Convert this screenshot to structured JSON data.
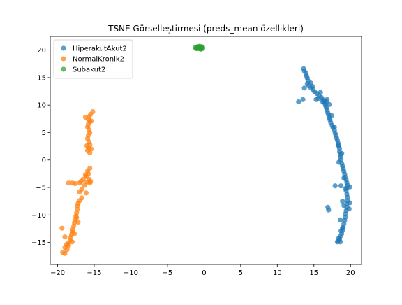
{
  "chart_data": {
    "type": "scatter",
    "title": "TSNE Görselleştirmesi (preds_mean özellikleri)",
    "xlabel": "",
    "ylabel": "",
    "xlim": [
      -21,
      21.5
    ],
    "ylim": [
      -19,
      22.5
    ],
    "xticks": [
      -20,
      -15,
      -10,
      -5,
      0,
      5,
      10,
      15,
      20
    ],
    "yticks": [
      -15,
      -10,
      -5,
      0,
      5,
      10,
      15,
      20
    ],
    "grid": false,
    "legend_position": "top-left",
    "series": [
      {
        "name": "HiperakutAkut2",
        "color": "#1f77b4",
        "points": [
          [
            13.6,
            16.6
          ],
          [
            13.7,
            16.2
          ],
          [
            13.9,
            15.8
          ],
          [
            14.0,
            15.3
          ],
          [
            14.1,
            14.9
          ],
          [
            14.2,
            14.4
          ],
          [
            14.1,
            13.9
          ],
          [
            14.3,
            13.5
          ],
          [
            14.6,
            13.1
          ],
          [
            14.9,
            12.8
          ],
          [
            15.1,
            12.4
          ],
          [
            15.4,
            12.1
          ],
          [
            15.7,
            11.7
          ],
          [
            16.0,
            11.4
          ],
          [
            16.2,
            11.0
          ],
          [
            16.4,
            10.7
          ],
          [
            16.5,
            10.3
          ],
          [
            16.6,
            9.9
          ],
          [
            16.7,
            9.5
          ],
          [
            16.8,
            9.1
          ],
          [
            16.9,
            8.6
          ],
          [
            17.0,
            8.2
          ],
          [
            17.1,
            7.7
          ],
          [
            17.2,
            7.3
          ],
          [
            17.3,
            6.8
          ],
          [
            17.5,
            6.3
          ],
          [
            17.6,
            5.9
          ],
          [
            17.8,
            5.4
          ],
          [
            17.9,
            4.9
          ],
          [
            18.0,
            4.5
          ],
          [
            18.1,
            4.0
          ],
          [
            18.2,
            3.6
          ],
          [
            18.3,
            3.1
          ],
          [
            18.4,
            2.6
          ],
          [
            18.5,
            2.1
          ],
          [
            18.5,
            1.5
          ],
          [
            18.6,
            1.0
          ],
          [
            18.6,
            0.5
          ],
          [
            18.7,
            0.0
          ],
          [
            18.8,
            -0.6
          ],
          [
            18.9,
            -1.1
          ],
          [
            19.0,
            -1.6
          ],
          [
            19.1,
            -2.1
          ],
          [
            19.2,
            -2.6
          ],
          [
            19.3,
            -3.1
          ],
          [
            19.4,
            -3.6
          ],
          [
            19.5,
            -4.1
          ],
          [
            19.6,
            -4.6
          ],
          [
            19.5,
            -5.1
          ],
          [
            19.4,
            -5.6
          ],
          [
            19.5,
            -6.2
          ],
          [
            19.6,
            -6.8
          ],
          [
            19.6,
            -7.4
          ],
          [
            19.5,
            -8.0
          ],
          [
            19.5,
            -8.6
          ],
          [
            19.4,
            -9.2
          ],
          [
            19.3,
            -9.8
          ],
          [
            19.3,
            -10.4
          ],
          [
            19.2,
            -11.0
          ],
          [
            19.1,
            -11.6
          ],
          [
            19.0,
            -12.2
          ],
          [
            18.9,
            -12.8
          ],
          [
            18.8,
            -13.4
          ],
          [
            18.6,
            -13.9
          ],
          [
            18.5,
            -14.4
          ],
          [
            18.3,
            -14.7
          ],
          [
            18.6,
            -14.9
          ],
          [
            18.4,
            -14.2
          ],
          [
            18.9,
            -12.4
          ],
          [
            19.1,
            -8.3
          ],
          [
            19.8,
            -8.9
          ],
          [
            19.9,
            -7.8
          ],
          [
            18.9,
            -7.5
          ],
          [
            18.7,
            -4.7
          ],
          [
            19.9,
            -4.9
          ],
          [
            19.1,
            -3.3
          ],
          [
            18.4,
            -0.4
          ],
          [
            18.8,
            1.2
          ],
          [
            18.3,
            2.7
          ],
          [
            17.8,
            6.0
          ],
          [
            17.4,
            8.1
          ],
          [
            17.1,
            10.1
          ],
          [
            16.7,
            10.6
          ],
          [
            16.2,
            10.6
          ],
          [
            15.6,
            11.2
          ],
          [
            15.3,
            11.0
          ],
          [
            16.8,
            11.0
          ],
          [
            15.9,
            12.3
          ],
          [
            14.8,
            13.4
          ],
          [
            13.7,
            13.1
          ],
          [
            14.6,
            14.0
          ],
          [
            13.5,
            11.0
          ],
          [
            12.9,
            10.6
          ],
          [
            16.9,
            -8.6
          ],
          [
            17.0,
            -9.1
          ],
          [
            17.9,
            -4.7
          ],
          [
            19.3,
            -5.2
          ],
          [
            18.7,
            -12.9
          ],
          [
            18.2,
            -14.9
          ],
          [
            18.6,
            -10.9
          ]
        ]
      },
      {
        "name": "NormalKronik2",
        "color": "#ff7f0e",
        "points": [
          [
            -15.2,
            8.8
          ],
          [
            -15.5,
            8.3
          ],
          [
            -15.7,
            7.9
          ],
          [
            -15.8,
            7.4
          ],
          [
            -15.6,
            7.0
          ],
          [
            -15.8,
            6.5
          ],
          [
            -15.9,
            6.0
          ],
          [
            -15.7,
            5.5
          ],
          [
            -15.6,
            5.0
          ],
          [
            -15.8,
            4.5
          ],
          [
            -15.9,
            3.9
          ],
          [
            -15.7,
            3.3
          ],
          [
            -15.6,
            2.8
          ],
          [
            -15.8,
            2.2
          ],
          [
            -15.9,
            1.7
          ],
          [
            -15.6,
            1.3
          ],
          [
            -16.2,
            7.8
          ],
          [
            -15.4,
            7.1
          ],
          [
            -15.4,
            2.0
          ],
          [
            -16.0,
            2.6
          ],
          [
            -15.6,
            -1.5
          ],
          [
            -15.9,
            -2.0
          ],
          [
            -15.8,
            -2.5
          ],
          [
            -16.1,
            -3.0
          ],
          [
            -15.7,
            -3.5
          ],
          [
            -16.0,
            -4.0
          ],
          [
            -16.3,
            -4.6
          ],
          [
            -16.7,
            -5.3
          ],
          [
            -17.0,
            -5.8
          ],
          [
            -17.0,
            -4.2
          ],
          [
            -16.5,
            -3.5
          ],
          [
            -16.2,
            -2.7
          ],
          [
            -15.6,
            -4.2
          ],
          [
            -16.1,
            -6.0
          ],
          [
            -16.7,
            -6.9
          ],
          [
            -17.0,
            -7.4
          ],
          [
            -17.2,
            -7.9
          ],
          [
            -17.3,
            -8.4
          ],
          [
            -17.3,
            -9.0
          ],
          [
            -17.4,
            -9.6
          ],
          [
            -17.5,
            -10.2
          ],
          [
            -17.6,
            -10.8
          ],
          [
            -17.7,
            -11.4
          ],
          [
            -17.8,
            -12.0
          ],
          [
            -17.9,
            -12.6
          ],
          [
            -18.0,
            -13.1
          ],
          [
            -18.1,
            -13.6
          ],
          [
            -18.2,
            -14.1
          ],
          [
            -18.3,
            -14.6
          ],
          [
            -18.5,
            -15.1
          ],
          [
            -18.8,
            -15.4
          ],
          [
            -19.0,
            -15.9
          ],
          [
            -18.7,
            -16.3
          ],
          [
            -19.3,
            -16.8
          ],
          [
            -19.0,
            -17.0
          ],
          [
            -18.0,
            -14.9
          ],
          [
            -17.7,
            -13.4
          ],
          [
            -17.2,
            -11.3
          ],
          [
            -17.4,
            -10.5
          ],
          [
            -19.0,
            -14.0
          ],
          [
            -19.4,
            -12.4
          ],
          [
            -18.5,
            -15.6
          ],
          [
            -18.0,
            -4.2
          ],
          [
            -17.6,
            -4.3
          ],
          [
            -18.5,
            -4.2
          ],
          [
            -16.8,
            -3.9
          ],
          [
            -15.5,
            -3.9
          ]
        ]
      },
      {
        "name": "Subakut2",
        "color": "#2ca02c",
        "points": [
          [
            -1.2,
            20.5
          ],
          [
            -1.0,
            20.3
          ],
          [
            -0.8,
            20.6
          ],
          [
            -0.6,
            20.4
          ],
          [
            -0.4,
            20.5
          ],
          [
            -0.2,
            20.3
          ],
          [
            -0.3,
            20.6
          ],
          [
            -0.5,
            20.2
          ],
          [
            -0.7,
            20.5
          ],
          [
            -0.9,
            20.6
          ],
          [
            -1.1,
            20.3
          ],
          [
            -0.6,
            20.7
          ],
          [
            -0.4,
            20.2
          ],
          [
            -0.8,
            20.3
          ],
          [
            -0.2,
            20.5
          ]
        ]
      }
    ]
  }
}
